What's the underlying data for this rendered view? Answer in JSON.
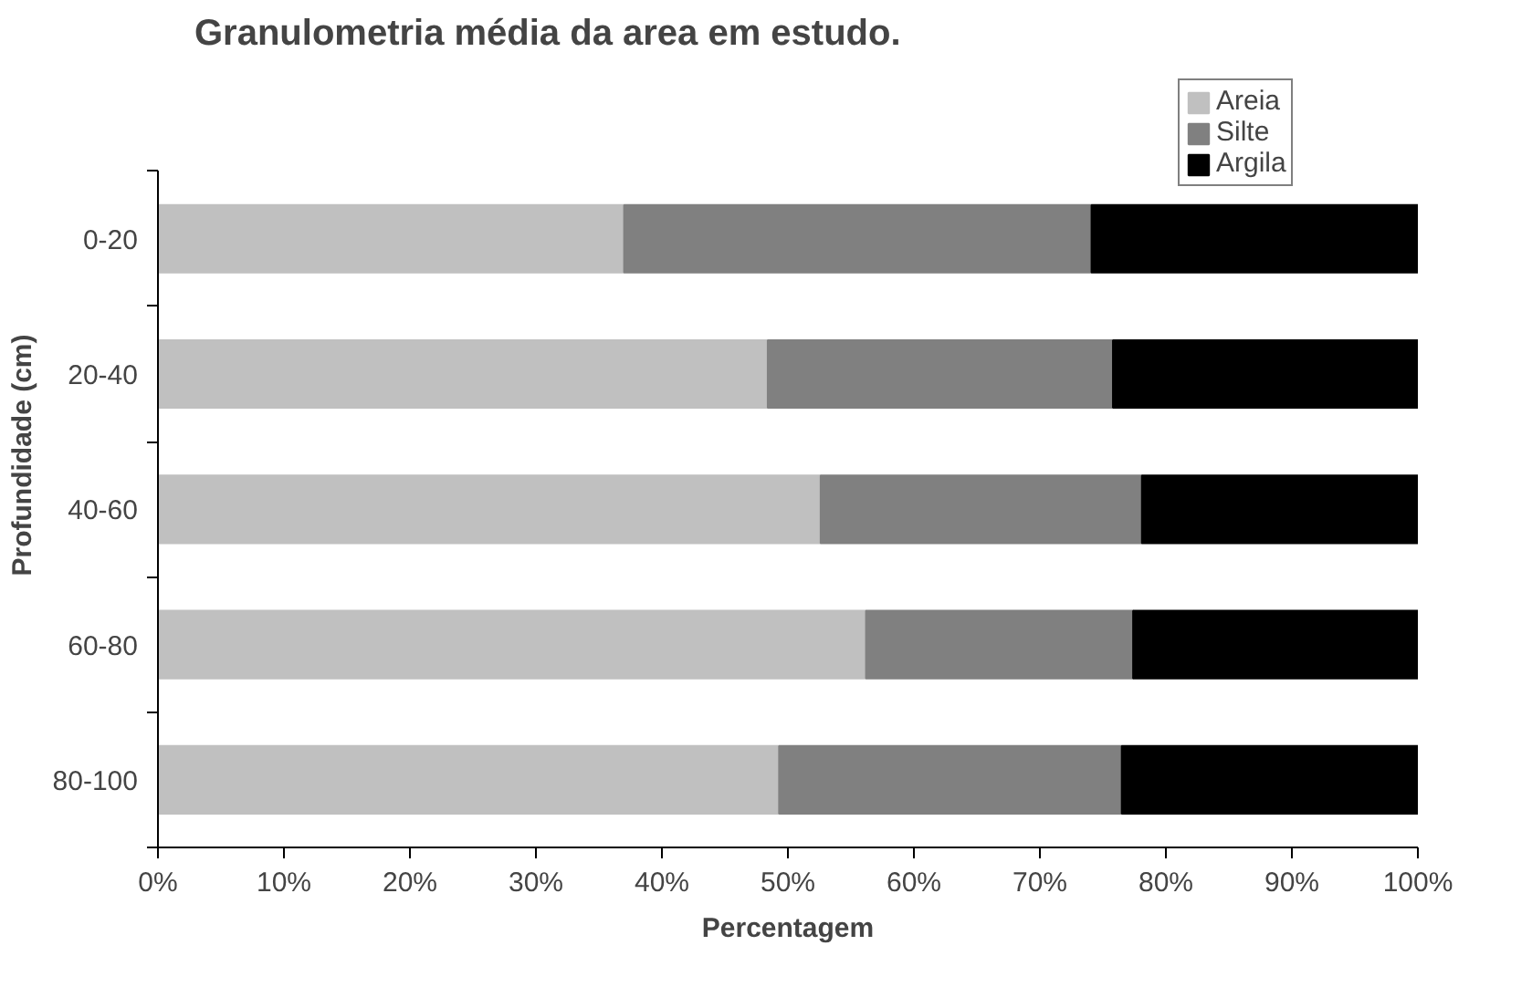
{
  "chart_data": {
    "type": "bar",
    "orientation": "horizontal",
    "stacked": true,
    "title": "Granulometria média da area em estudo.",
    "xlabel": "Percentagem",
    "ylabel": "Profundidade (cm)",
    "categories": [
      "0-20",
      "20-40",
      "40-60",
      "60-80",
      "80-100"
    ],
    "series": [
      {
        "name": "Areia",
        "color": "#c0c0c0",
        "values": [
          37.0,
          48.4,
          52.6,
          56.2,
          49.3
        ]
      },
      {
        "name": "Silte",
        "color": "#808080",
        "values": [
          37.1,
          27.4,
          25.5,
          21.2,
          27.2
        ]
      },
      {
        "name": "Argila",
        "color": "#000000",
        "values": [
          25.9,
          24.2,
          21.9,
          22.6,
          23.5
        ]
      }
    ],
    "xlim": [
      0,
      100
    ],
    "xticks": [
      {
        "value": 0,
        "label": "0%"
      },
      {
        "value": 10,
        "label": "10%"
      },
      {
        "value": 20,
        "label": "20%"
      },
      {
        "value": 30,
        "label": "30%"
      },
      {
        "value": 40,
        "label": "40%"
      },
      {
        "value": 50,
        "label": "50%"
      },
      {
        "value": 60,
        "label": "60%"
      },
      {
        "value": 70,
        "label": "70%"
      },
      {
        "value": 80,
        "label": "80%"
      },
      {
        "value": 90,
        "label": "90%"
      },
      {
        "value": 100,
        "label": "100%"
      }
    ],
    "grid": false,
    "legend": "top right"
  }
}
